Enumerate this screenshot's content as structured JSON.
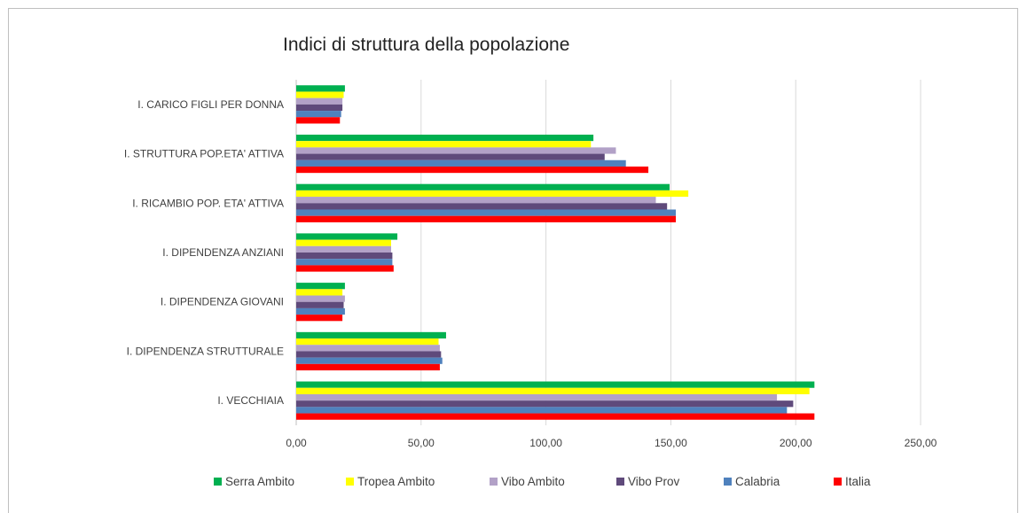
{
  "chart_data": {
    "type": "bar",
    "orientation": "horizontal",
    "title": "Indici di struttura della popolazione",
    "categories": [
      "I. CARICO FIGLI PER DONNA",
      "I. STRUTTURA POP.ETA' ATTIVA",
      "I. RICAMBIO POP. ETA' ATTIVA",
      "I. DIPENDENZA ANZIANI",
      "I. DIPENDENZA GIOVANI",
      "I. DIPENDENZA STRUTTURALE",
      "I. VECCHIAIA"
    ],
    "series": [
      {
        "name": "Serra Ambito",
        "color": "#00b050",
        "values": [
          19.5,
          119.0,
          149.5,
          40.5,
          19.5,
          60.0,
          207.5
        ]
      },
      {
        "name": "Tropea Ambito",
        "color": "#ffff00",
        "values": [
          19.0,
          118.0,
          157.0,
          38.0,
          18.5,
          57.0,
          205.5
        ]
      },
      {
        "name": "Vibo Ambito",
        "color": "#b2a1c7",
        "values": [
          18.5,
          128.0,
          144.0,
          38.0,
          19.5,
          57.5,
          192.5
        ]
      },
      {
        "name": "Vibo Prov",
        "color": "#5f4a7b",
        "values": [
          18.5,
          123.5,
          148.5,
          38.5,
          19.0,
          58.0,
          199.0
        ]
      },
      {
        "name": "Calabria",
        "color": "#4f81bd",
        "values": [
          18.0,
          132.0,
          152.0,
          38.5,
          19.5,
          58.5,
          196.5
        ]
      },
      {
        "name": "Italia",
        "color": "#ff0000",
        "values": [
          17.5,
          141.0,
          152.0,
          39.0,
          18.5,
          57.5,
          207.5
        ]
      }
    ],
    "xlim": [
      0,
      250
    ],
    "x_ticks": [
      "0,00",
      "50,00",
      "100,00",
      "150,00",
      "200,00",
      "250,00"
    ],
    "grid": true,
    "gridline_color": "#d9d9d9",
    "legend_position": "bottom",
    "xlabel": "",
    "ylabel": ""
  }
}
